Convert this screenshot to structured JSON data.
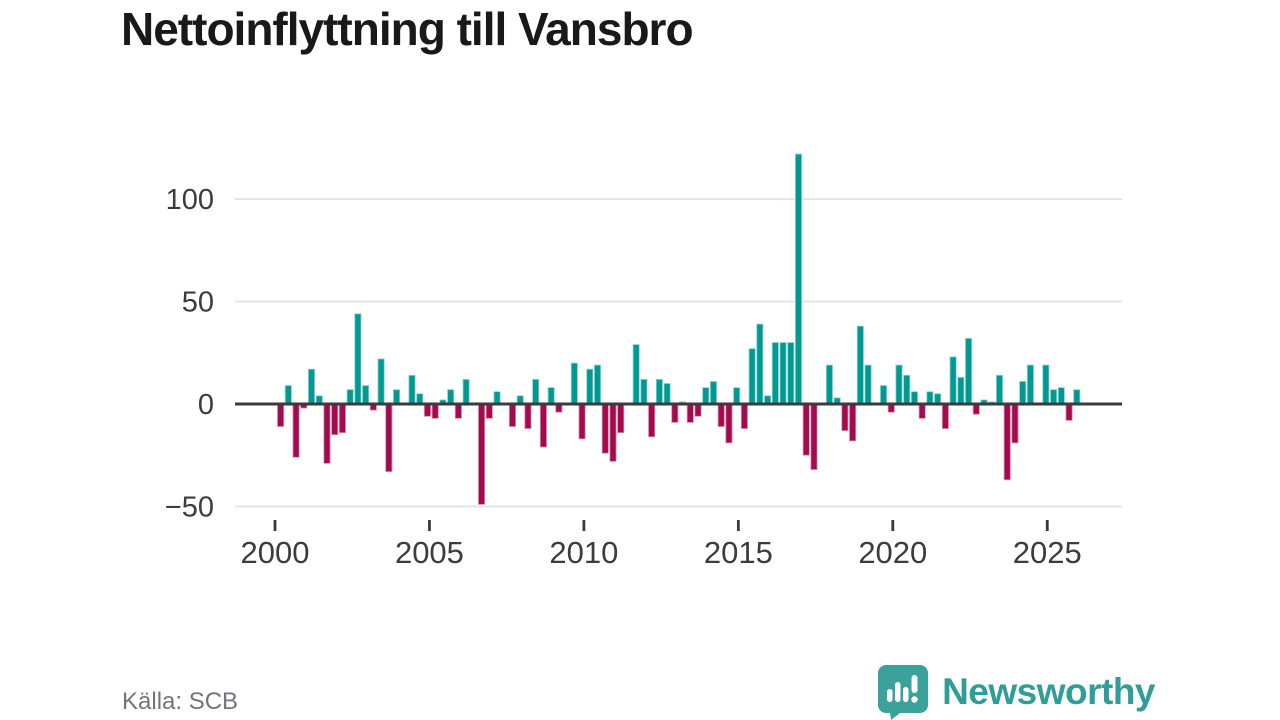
{
  "header": {
    "title": "Nettoinflyttning till Vansbro"
  },
  "footer": {
    "source_label": "Källa: SCB",
    "brand": "Newsworthy"
  },
  "colors": {
    "positive": "#009a93",
    "positive_edge": "#90d2cd",
    "negative": "#a40a4d",
    "negative_edge": "#d493ac",
    "zero_line": "#3b3b3b",
    "grid_line": "#e4e4e4",
    "axis_text": "#3c3c3c",
    "title_text": "#191919",
    "source_text": "#73737d",
    "brand_teal": "#359f99"
  },
  "chart_data": {
    "type": "bar",
    "title": "Nettoinflyttning till Vansbro",
    "ylabel": "",
    "xlabel": "",
    "unit": "net in-migration per quarter (persons)",
    "x_start": "2000 Q1",
    "x_end": "2025 Q4",
    "y_gridlines": [
      100,
      50,
      0,
      -50
    ],
    "y_tick_labels": [
      "100",
      "50",
      "0",
      "−50"
    ],
    "x_tick_years": [
      2000,
      2005,
      2010,
      2015,
      2020,
      2025
    ],
    "x_tick_labels": [
      "2000",
      "2005",
      "2010",
      "2015",
      "2020",
      "2025"
    ],
    "legend": "none",
    "grid": "horizontal",
    "series": [
      {
        "year": 2000,
        "quarters": [
          -11,
          9,
          -26,
          -2
        ]
      },
      {
        "year": 2001,
        "quarters": [
          17,
          4,
          -29,
          -15
        ]
      },
      {
        "year": 2002,
        "quarters": [
          -14,
          7,
          44,
          9
        ]
      },
      {
        "year": 2003,
        "quarters": [
          -3,
          22,
          -33,
          7
        ]
      },
      {
        "year": 2004,
        "quarters": [
          0,
          14,
          5,
          -6
        ]
      },
      {
        "year": 2005,
        "quarters": [
          -7,
          2,
          7,
          -7
        ]
      },
      {
        "year": 2006,
        "quarters": [
          12,
          0,
          -49,
          -7
        ]
      },
      {
        "year": 2007,
        "quarters": [
          6,
          0,
          -11,
          4
        ]
      },
      {
        "year": 2008,
        "quarters": [
          -12,
          12,
          -21,
          8
        ]
      },
      {
        "year": 2009,
        "quarters": [
          -4,
          0,
          20,
          -17
        ]
      },
      {
        "year": 2010,
        "quarters": [
          17,
          19,
          -24,
          -28
        ]
      },
      {
        "year": 2011,
        "quarters": [
          -14,
          0,
          29,
          12
        ]
      },
      {
        "year": 2012,
        "quarters": [
          -16,
          12,
          10,
          -9
        ]
      },
      {
        "year": 2013,
        "quarters": [
          1,
          -9,
          -6,
          8
        ]
      },
      {
        "year": 2014,
        "quarters": [
          11,
          -11,
          -19,
          8
        ]
      },
      {
        "year": 2015,
        "quarters": [
          -12,
          27,
          39,
          4
        ]
      },
      {
        "year": 2016,
        "quarters": [
          30,
          30,
          30,
          122
        ]
      },
      {
        "year": 2017,
        "quarters": [
          -25,
          -32,
          0,
          19
        ]
      },
      {
        "year": 2018,
        "quarters": [
          3,
          -13,
          -18,
          38
        ]
      },
      {
        "year": 2019,
        "quarters": [
          19,
          0,
          9,
          -4
        ]
      },
      {
        "year": 2020,
        "quarters": [
          19,
          14,
          6,
          -7
        ]
      },
      {
        "year": 2021,
        "quarters": [
          6,
          5,
          -12,
          23
        ]
      },
      {
        "year": 2022,
        "quarters": [
          13,
          32,
          -5,
          2
        ]
      },
      {
        "year": 2023,
        "quarters": [
          1,
          14,
          -37,
          -19
        ]
      },
      {
        "year": 2024,
        "quarters": [
          11,
          19,
          0,
          19
        ]
      },
      {
        "year": 2025,
        "quarters": [
          7,
          8,
          -8,
          7
        ]
      }
    ]
  }
}
